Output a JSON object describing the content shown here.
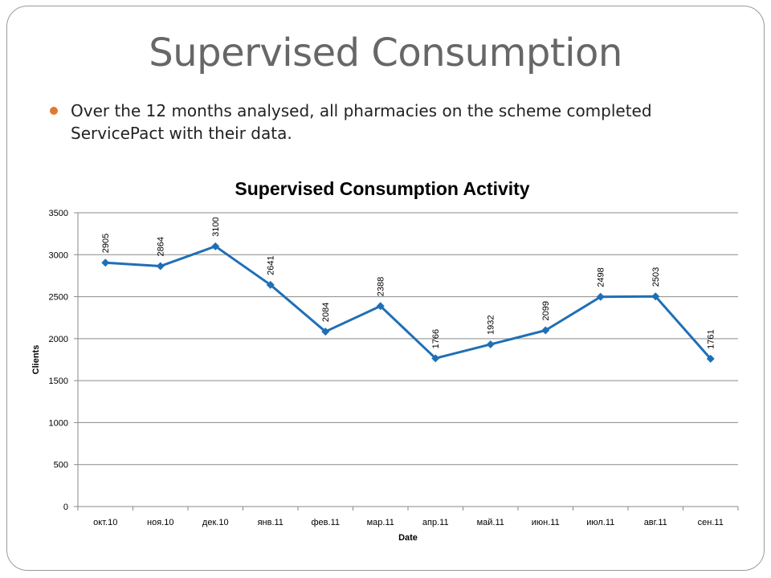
{
  "slide": {
    "title": "Supervised Consumption",
    "bullets": [
      "Over the 12 months analysed, all pharmacies on the scheme completed ServicePact with their data."
    ]
  },
  "colors": {
    "series": "#1f6fb5",
    "grid": "#8a8a8a",
    "title_text": "#676767",
    "bullet": "#e07a2e"
  },
  "chart_data": {
    "type": "line",
    "title": "Supervised Consumption Activity",
    "xlabel": "Date",
    "ylabel": "Clients",
    "categories": [
      "окт.10",
      "ноя.10",
      "дек.10",
      "янв.11",
      "фев.11",
      "мар.11",
      "апр.11",
      "май.11",
      "июн.11",
      "июл.11",
      "авг.11",
      "сен.11"
    ],
    "values": [
      2905,
      2864,
      3100,
      2641,
      2084,
      2388,
      1766,
      1932,
      2099,
      2498,
      2503,
      1761
    ],
    "ylim": [
      0,
      3500
    ],
    "yticks": [
      0,
      500,
      1000,
      1500,
      2000,
      2500,
      3000,
      3500
    ],
    "grid": true,
    "marker": "diamond",
    "data_labels": true,
    "legend": "none"
  }
}
